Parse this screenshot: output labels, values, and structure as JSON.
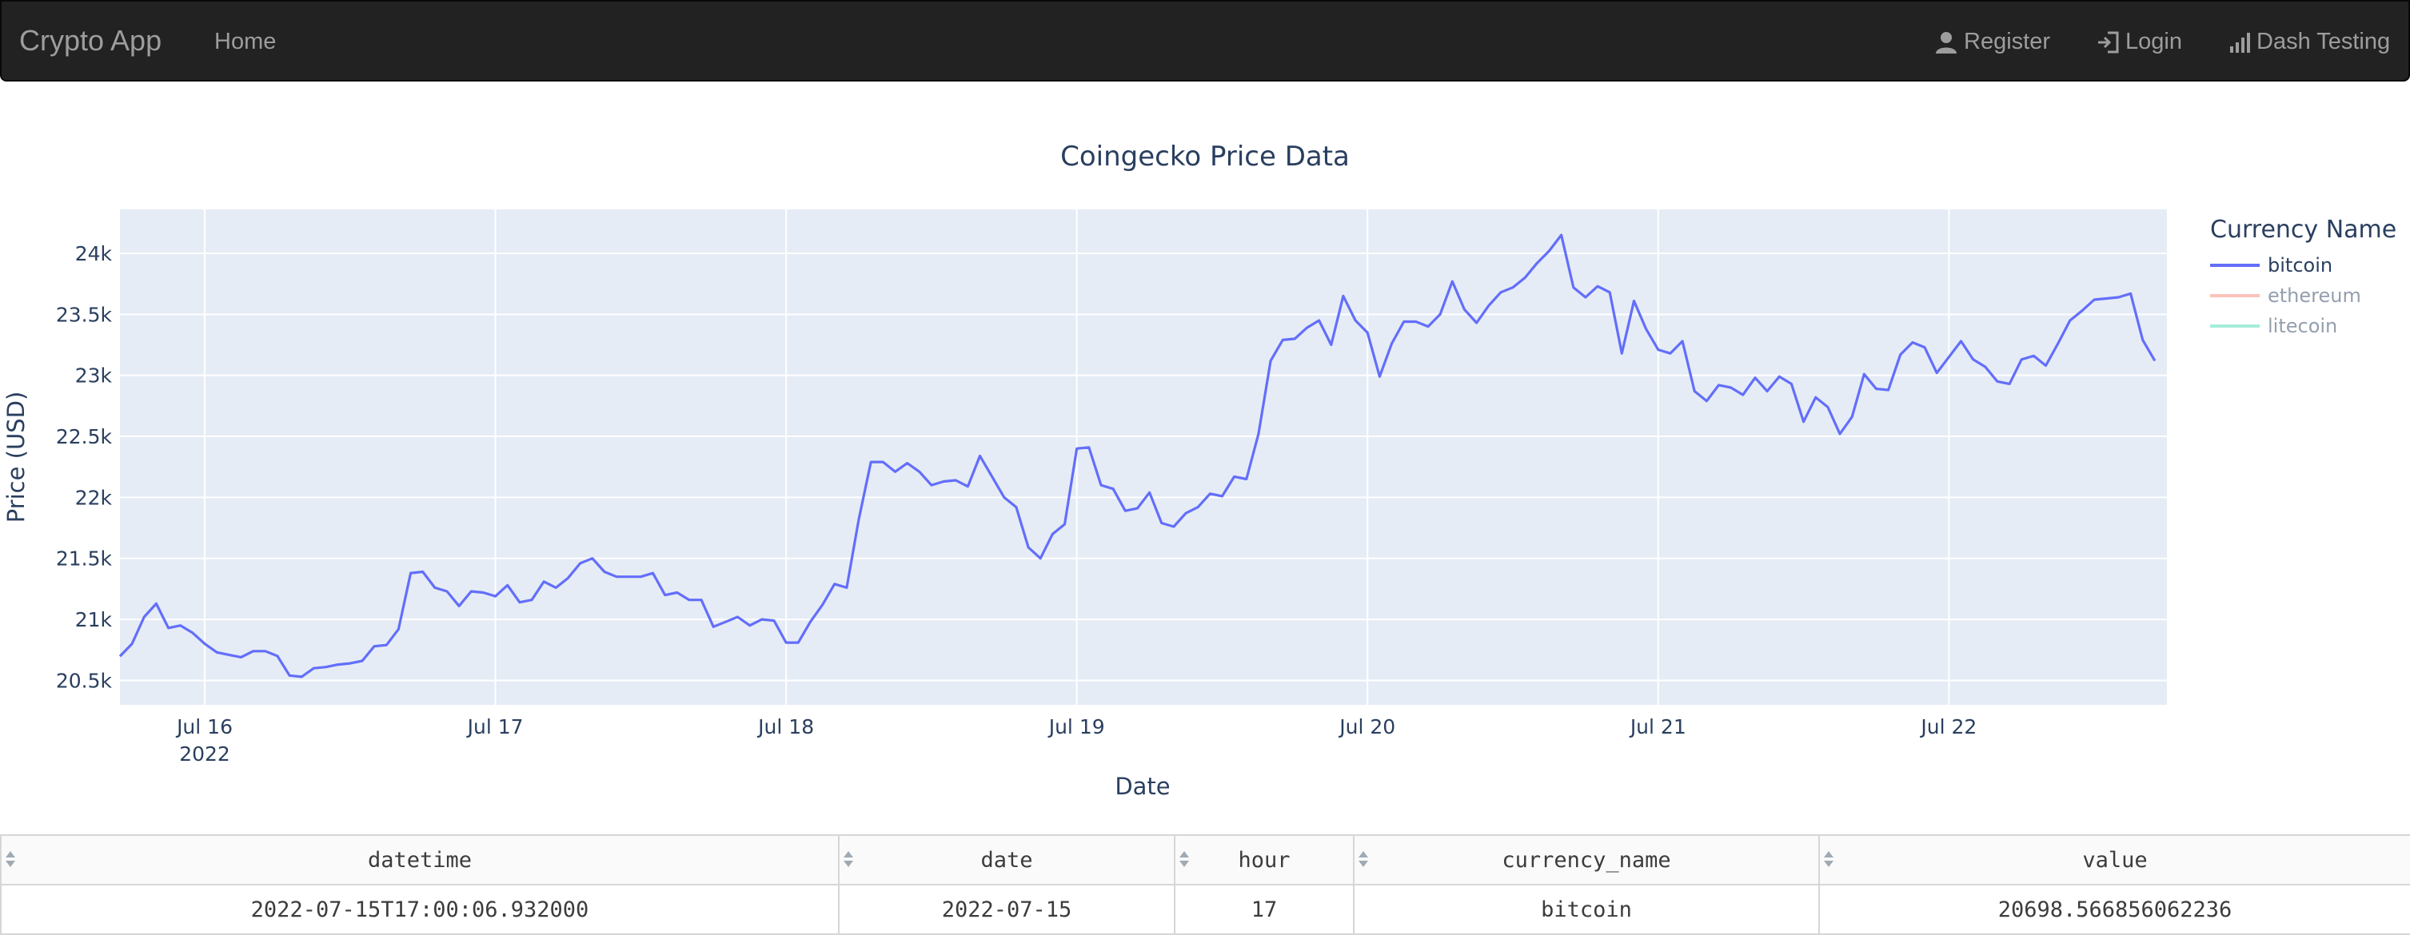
{
  "navbar": {
    "brand": "Crypto App",
    "home": "Home",
    "register": "Register",
    "login": "Login",
    "dash": "Dash Testing"
  },
  "colors": {
    "navbar_bg": "#222222",
    "plot_bg": "#e5ecf6",
    "bitcoin": "#636efa",
    "ethereum": "#EF553B",
    "litecoin": "#00cc96"
  },
  "chart_data": {
    "type": "line",
    "title": "Coingecko Price Data",
    "xlabel": "Date",
    "ylabel": "Price (USD)",
    "x_ticks": [
      "Jul 16",
      "Jul 17",
      "Jul 18",
      "Jul 19",
      "Jul 20",
      "Jul 21",
      "Jul 22"
    ],
    "x_year_label": "2022",
    "y_ticks": [
      "20.5k",
      "21k",
      "21.5k",
      "22k",
      "22.5k",
      "23k",
      "23.5k",
      "24k"
    ],
    "xlim": [
      "2022-07-15T17:00",
      "2022-07-22T18:00"
    ],
    "ylim": [
      20300,
      24360
    ],
    "legend": {
      "title": "Currency Name",
      "placement": "right"
    },
    "series": [
      {
        "name": "bitcoin",
        "x_start": "2022-07-15T17:00",
        "x_step_hours": 1,
        "values": [
          20698,
          20800,
          21020,
          21130,
          20930,
          20950,
          20890,
          20800,
          20730,
          20710,
          20690,
          20740,
          20740,
          20700,
          20540,
          20530,
          20600,
          20610,
          20630,
          20640,
          20660,
          20780,
          20790,
          20920,
          21380,
          21390,
          21260,
          21230,
          21110,
          21230,
          21220,
          21190,
          21280,
          21140,
          21160,
          21310,
          21260,
          21340,
          21460,
          21500,
          21390,
          21350,
          21350,
          21350,
          21380,
          21200,
          21220,
          21160,
          21160,
          20940,
          20980,
          21020,
          20950,
          21000,
          20990,
          20810,
          20810,
          20980,
          21120,
          21290,
          21260,
          21820,
          22290,
          22290,
          22210,
          22280,
          22210,
          22100,
          22130,
          22140,
          22090,
          22340,
          22170,
          22000,
          21920,
          21590,
          21500,
          21700,
          21780,
          22400,
          22410,
          22100,
          22070,
          21890,
          21910,
          22040,
          21790,
          21760,
          21870,
          21920,
          22030,
          22010,
          22170,
          22150,
          22520,
          23120,
          23290,
          23300,
          23390,
          23450,
          23250,
          23650,
          23450,
          23350,
          22990,
          23260,
          23440,
          23440,
          23400,
          23500,
          23770,
          23540,
          23430,
          23570,
          23680,
          23720,
          23800,
          23920,
          24020,
          24150,
          23720,
          23640,
          23730,
          23680,
          23180,
          23610,
          23380,
          23210,
          23180,
          23280,
          22870,
          22790,
          22920,
          22900,
          22840,
          22980,
          22870,
          22990,
          22930,
          22620,
          22820,
          22740,
          22520,
          22660,
          23010,
          22890,
          22880,
          23170,
          23270,
          23230,
          23020,
          23150,
          23280,
          23130,
          23070,
          22950,
          22930,
          23130,
          23160,
          23080,
          23260,
          23450,
          23530,
          23620,
          23630,
          23640,
          23670,
          23290,
          23120
        ]
      },
      {
        "name": "ethereum",
        "values": []
      },
      {
        "name": "litecoin",
        "values": []
      }
    ]
  },
  "table": {
    "columns": [
      "datetime",
      "date",
      "hour",
      "currency_name",
      "value"
    ],
    "rows": [
      [
        "2022-07-15T17:00:06.932000",
        "2022-07-15",
        "17",
        "bitcoin",
        "20698.566856062236"
      ]
    ]
  }
}
